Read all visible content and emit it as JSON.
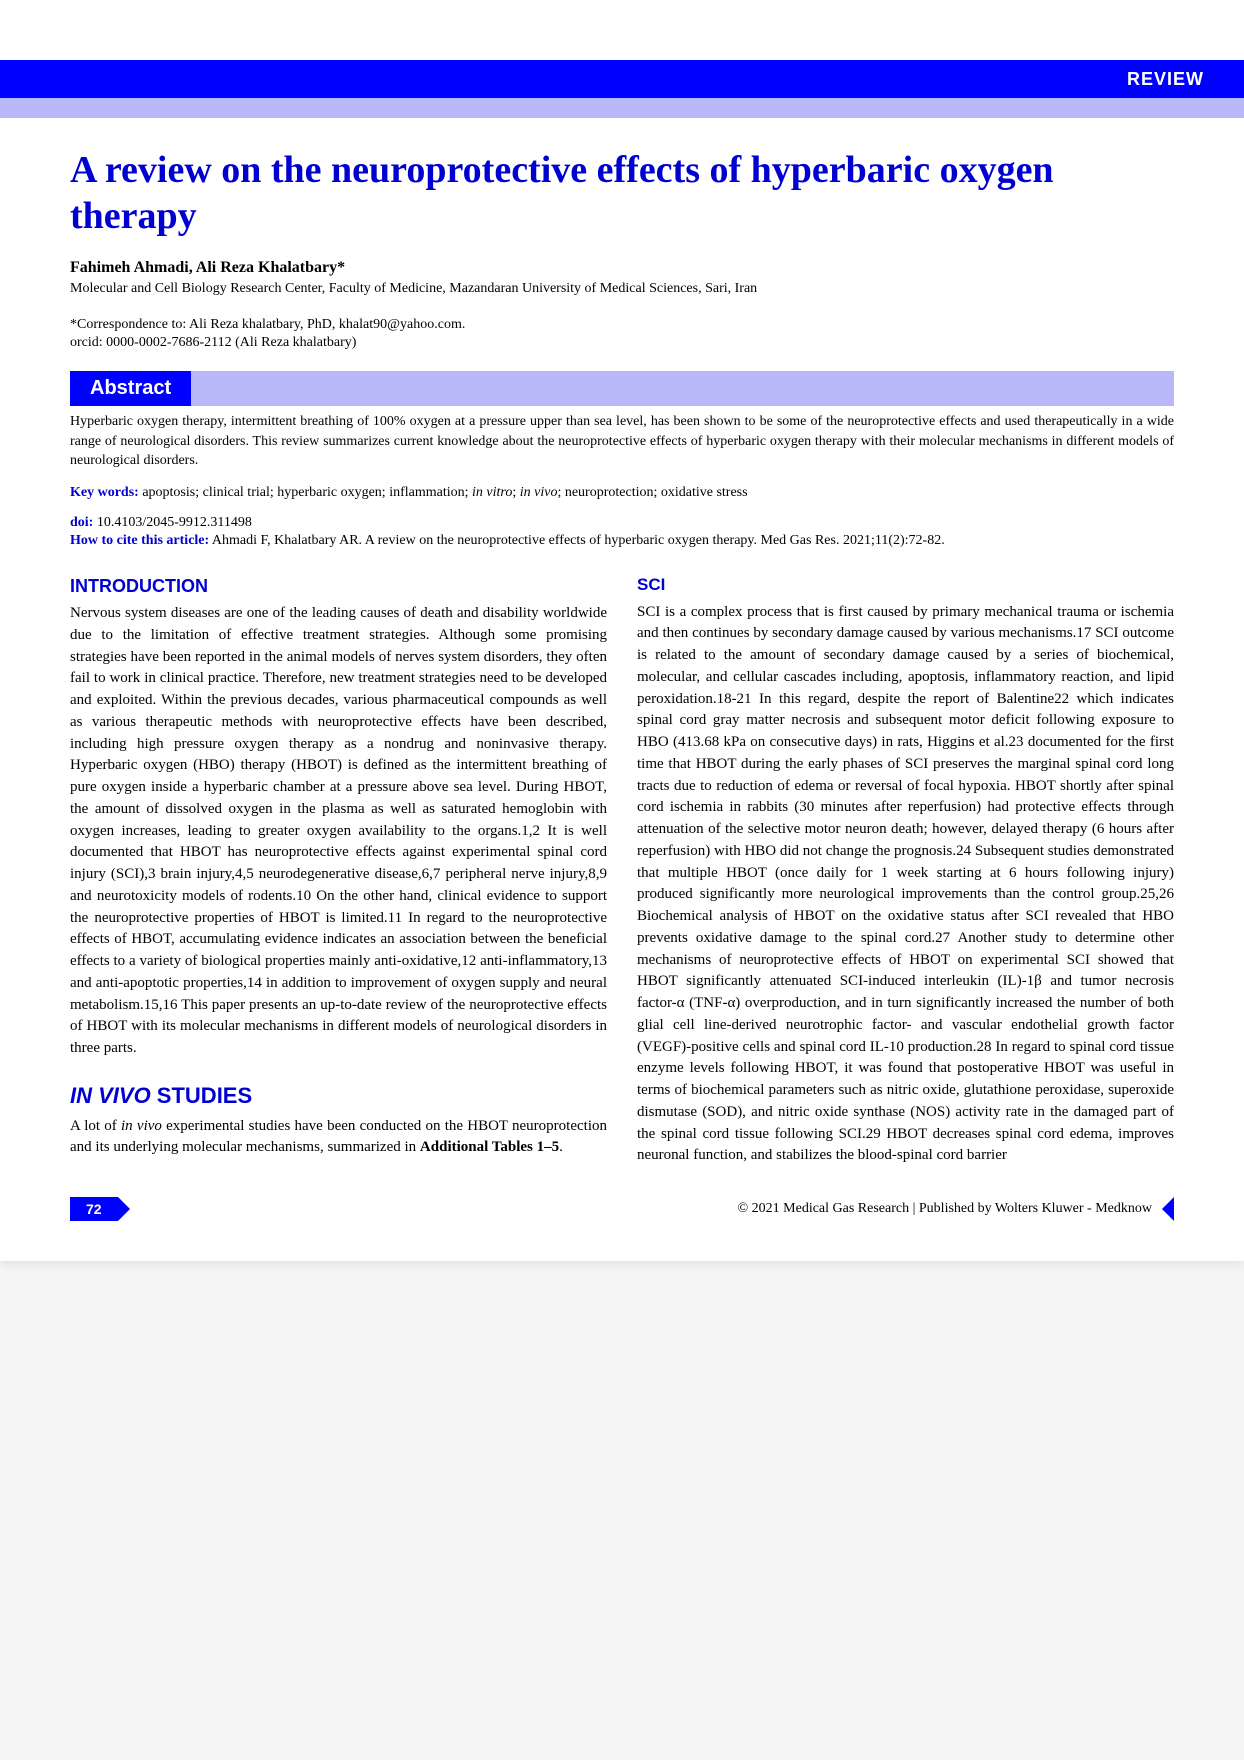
{
  "banner": {
    "review_label": "REVIEW"
  },
  "title": "A review on the neuroprotective effects of hyperbaric oxygen therapy",
  "authors": "Fahimeh Ahmadi, Ali Reza Khalatbary*",
  "affiliation": "Molecular and Cell Biology Research Center, Faculty of Medicine, Mazandaran University of Medical Sciences, Sari, Iran",
  "correspondence": "*Correspondence to: Ali Reza khalatbary, PhD, khalat90@yahoo.com.",
  "orcid": "orcid: 0000-0002-7686-2112 (Ali Reza khalatbary)",
  "abstract": {
    "header": "Abstract",
    "text": "Hyperbaric oxygen therapy, intermittent breathing of 100% oxygen at a pressure upper than sea level, has been shown to be some of the neuroprotective effects and used therapeutically in a wide range of neurological disorders. This review summarizes current knowledge about the neuroprotective effects of hyperbaric oxygen therapy with their molecular mechanisms in different models of neurological disorders."
  },
  "keywords": {
    "label": "Key words:",
    "text_part1": " apoptosis; clinical trial; hyperbaric oxygen; inflammation; ",
    "italic1": "in vitro",
    "text_part2": "; ",
    "italic2": "in vivo",
    "text_part3": "; neuroprotection; oxidative stress"
  },
  "doi": {
    "label": "doi:",
    "value": " 10.4103/2045-9912.311498"
  },
  "citation": {
    "label": "How to cite this article:",
    "text": " Ahmadi F, Khalatbary AR. A review on the neuroprotective effects of hyperbaric oxygen therapy. Med Gas Res. 2021;11(2):72-82."
  },
  "intro": {
    "header": "INTRODUCTION",
    "text": "Nervous system diseases are one of the leading causes of death and disability worldwide due to the limitation of effective treatment strategies. Although some promising strategies have been reported in the animal models of nerves system disorders, they often fail to work in clinical practice. Therefore, new treatment strategies need to be developed and exploited. Within the previous decades, various pharmaceutical compounds as well as various therapeutic methods with neuroprotective effects have been described, including high pressure oxygen therapy as a nondrug and noninvasive therapy. Hyperbaric oxygen (HBO) therapy (HBOT) is defined as the intermittent breathing of pure oxygen inside a hyperbaric chamber at a pressure above sea level. During HBOT, the amount of dissolved oxygen in the plasma as well as saturated hemoglobin with oxygen increases, leading to greater oxygen availability to the organs.1,2 It is well documented that HBOT has neuroprotective effects against experimental spinal cord injury (SCI),3 brain injury,4,5 neurodegenerative disease,6,7 peripheral nerve injury,8,9 and neurotoxicity models of rodents.10 On the other hand, clinical evidence to support the neuroprotective properties of HBOT is limited.11 In regard to the neuroprotective effects of HBOT, accumulating evidence indicates an association between the beneficial effects to a variety of biological properties mainly anti-oxidative,12 anti-inflammatory,13 and anti-apoptotic properties,14 in addition to improvement of oxygen supply and neural metabolism.15,16 This paper presents an up-to-date review of the neuroprotective effects of HBOT with its molecular mechanisms in different models of neurological disorders in three parts."
  },
  "invivo": {
    "header_italic": "IN VIVO",
    "header_rest": " STUDIES",
    "text_part1": "A lot of ",
    "text_italic": "in vivo",
    "text_part2": " experimental studies have been conducted on the HBOT neuroprotection and its underlying molecular mechanisms, summarized in ",
    "text_bold": "Additional Tables 1–5",
    "text_part3": "."
  },
  "sci": {
    "header": "SCI",
    "text": "SCI is a complex process that is first caused by primary mechanical trauma or ischemia and then continues by secondary damage caused by various mechanisms.17 SCI outcome is related to the amount of secondary damage caused by a series of biochemical, molecular, and cellular cascades including, apoptosis, inflammatory reaction, and lipid peroxidation.18-21 In this regard, despite the report of Balentine22 which indicates spinal cord gray matter necrosis and subsequent motor deficit following exposure to HBO (413.68 kPa on consecutive days) in rats, Higgins et al.23 documented for the first time that HBOT during the early phases of SCI preserves the marginal spinal cord long tracts due to reduction of edema or reversal of focal hypoxia. HBOT shortly after spinal cord ischemia in rabbits (30 minutes after reperfusion) had protective effects through attenuation of the selective motor neuron death; however, delayed therapy (6 hours after reperfusion) with HBO did not change the prognosis.24 Subsequent studies demonstrated that multiple HBOT (once daily for 1 week starting at 6 hours following injury) produced significantly more neurological improvements than the control group.25,26 Biochemical analysis of HBOT on the oxidative status after SCI revealed that HBO prevents oxidative damage to the spinal cord.27 Another study to determine other mechanisms of neuroprotective effects of HBOT on experimental SCI showed that HBOT significantly attenuated SCI-induced interleukin (IL)-1β and tumor necrosis factor-α (TNF-α) overproduction, and in turn significantly increased the number of both glial cell line-derived neurotrophic factor- and vascular endothelial growth factor (VEGF)-positive cells and spinal cord IL-10 production.28 In regard to spinal cord tissue enzyme levels following HBOT, it was found that postoperative HBOT was useful in terms of biochemical parameters such as nitric oxide, glutathione peroxidase, superoxide dismutase (SOD), and nitric oxide synthase (NOS) activity rate in the damaged part of the spinal cord tissue following SCI.29 HBOT decreases spinal cord edema, improves neuronal function, and stabilizes the blood-spinal cord barrier"
  },
  "footer": {
    "page_num": "72",
    "copyright": "© 2021 Medical Gas Research | Published by Wolters Kluwer - Medknow"
  },
  "colors": {
    "primary_blue": "#0000ff",
    "light_blue": "#b8b8f8",
    "text_blue": "#0000d0",
    "background": "#ffffff"
  },
  "typography": {
    "title_fontsize": 38,
    "body_fontsize": 15,
    "abstract_fontsize": 14,
    "header_fontsize": 18
  }
}
